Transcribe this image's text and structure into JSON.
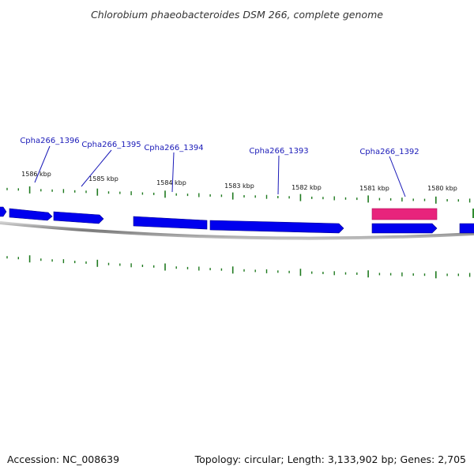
{
  "header": {
    "title": "Chlorobium phaeobacteroides DSM 266, complete genome"
  },
  "footer": {
    "accession": "Accession: NC_008639",
    "summary": "Topology: circular; Length: 3,133,902 bp; Genes: 2,705"
  },
  "colors": {
    "gene_forward": "#0000ee",
    "gene_reverse": "#0000ee",
    "gene_highlight": "#e8247c",
    "backbone": "#888888",
    "tick": "#1f7a1f",
    "gene_label": "#1a1ab8"
  },
  "map": {
    "kbp_labels": [
      "1586 kbp",
      "1585 kbp",
      "1584 kbp",
      "1583 kbp",
      "1582 kbp",
      "1581 kbp",
      "1580 kbp"
    ],
    "gene_labels": [
      {
        "id": "Cpha266_1396",
        "name": "Cpha266_1396"
      },
      {
        "id": "Cpha266_1395",
        "name": "Cpha266_1395"
      },
      {
        "id": "Cpha266_1394",
        "name": "Cpha266_1394"
      },
      {
        "id": "Cpha266_1393",
        "name": "Cpha266_1393"
      },
      {
        "id": "Cpha266_1392",
        "name": "Cpha266_1392"
      }
    ]
  }
}
